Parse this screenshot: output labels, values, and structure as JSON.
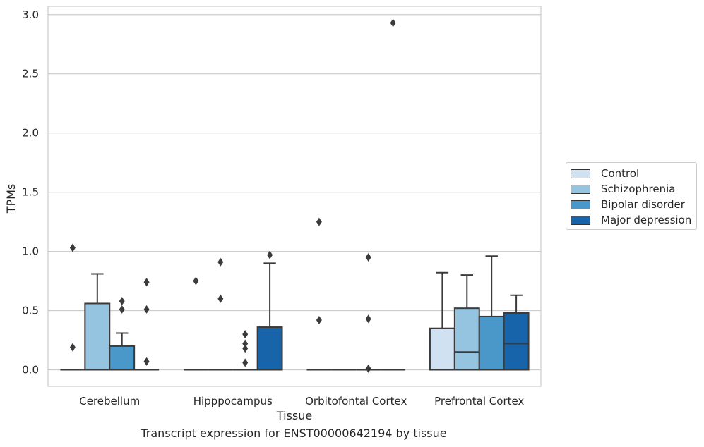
{
  "chart_data": {
    "type": "box",
    "title": "Transcript expression for ENST00000642194 by tissue",
    "xlabel": "Tissue",
    "ylabel": "TPMs",
    "ylim": [
      -0.14,
      3.07
    ],
    "yticks": [
      "0.0",
      "0.5",
      "1.0",
      "1.5",
      "2.0",
      "2.5",
      "3.0"
    ],
    "grid": "horizontal",
    "legend_position": "right",
    "categories": [
      "Cerebellum",
      "Hipppocampus",
      "Orbitofontal Cortex",
      "Prefrontal Cortex"
    ],
    "series": [
      {
        "name": "Control",
        "color": "#d0e1f2",
        "boxes": [
          {
            "q1": 0.0,
            "median": 0.0,
            "q3": 0.0,
            "whisker_low": 0.0,
            "whisker_high": 0.0,
            "outliers": [
              0.19,
              1.03
            ]
          },
          {
            "q1": 0.0,
            "median": 0.0,
            "q3": 0.0,
            "whisker_low": 0.0,
            "whisker_high": 0.0,
            "outliers": [
              0.75
            ]
          },
          {
            "q1": 0.0,
            "median": 0.0,
            "q3": 0.0,
            "whisker_low": 0.0,
            "whisker_high": 0.0,
            "outliers": [
              0.42,
              1.25
            ]
          },
          {
            "q1": 0.0,
            "median": 0.0,
            "q3": 0.35,
            "whisker_low": 0.0,
            "whisker_high": 0.82,
            "outliers": []
          }
        ]
      },
      {
        "name": "Schizophrenia",
        "color": "#94c4df",
        "boxes": [
          {
            "q1": 0.0,
            "median": 0.0,
            "q3": 0.56,
            "whisker_low": 0.0,
            "whisker_high": 0.81,
            "outliers": []
          },
          {
            "q1": 0.0,
            "median": 0.0,
            "q3": 0.0,
            "whisker_low": 0.0,
            "whisker_high": 0.0,
            "outliers": [
              0.6,
              0.91
            ]
          },
          {
            "q1": 0.0,
            "median": 0.0,
            "q3": 0.0,
            "whisker_low": 0.0,
            "whisker_high": 0.0,
            "outliers": []
          },
          {
            "q1": 0.0,
            "median": 0.15,
            "q3": 0.52,
            "whisker_low": 0.0,
            "whisker_high": 0.8,
            "outliers": []
          }
        ]
      },
      {
        "name": "Bipolar disorder",
        "color": "#4a98c9",
        "boxes": [
          {
            "q1": 0.0,
            "median": 0.0,
            "q3": 0.2,
            "whisker_low": 0.0,
            "whisker_high": 0.31,
            "outliers": [
              0.51,
              0.58
            ]
          },
          {
            "q1": 0.0,
            "median": 0.0,
            "q3": 0.0,
            "whisker_low": 0.0,
            "whisker_high": 0.0,
            "outliers": [
              0.06,
              0.18,
              0.22,
              0.3
            ]
          },
          {
            "q1": 0.0,
            "median": 0.0,
            "q3": 0.0,
            "whisker_low": 0.0,
            "whisker_high": 0.0,
            "outliers": [
              0.01,
              0.43,
              0.95
            ]
          },
          {
            "q1": 0.0,
            "median": 0.0,
            "q3": 0.45,
            "whisker_low": 0.0,
            "whisker_high": 0.96,
            "outliers": []
          }
        ]
      },
      {
        "name": "Major depression",
        "color": "#1764ab",
        "boxes": [
          {
            "q1": 0.0,
            "median": 0.0,
            "q3": 0.0,
            "whisker_low": 0.0,
            "whisker_high": 0.0,
            "outliers": [
              0.07,
              0.51,
              0.74
            ]
          },
          {
            "q1": 0.0,
            "median": 0.0,
            "q3": 0.36,
            "whisker_low": 0.0,
            "whisker_high": 0.9,
            "outliers": [
              0.97
            ]
          },
          {
            "q1": 0.0,
            "median": 0.0,
            "q3": 0.0,
            "whisker_low": 0.0,
            "whisker_high": 0.0,
            "outliers": [
              2.93
            ]
          },
          {
            "q1": 0.0,
            "median": 0.22,
            "q3": 0.48,
            "whisker_low": 0.0,
            "whisker_high": 0.63,
            "outliers": []
          }
        ]
      }
    ]
  }
}
